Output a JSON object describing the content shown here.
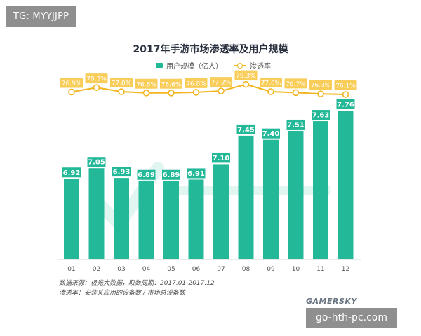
{
  "tag_label": "TG: MYYJJPP",
  "footer": {
    "source_line1": "数据来源：极光大数据，取数周期：2017.01-2017.12",
    "source_line2": "渗透率：安装某应用的设备数 / 市场总设备数",
    "brand": "GAMERSKY",
    "watermark": "go-hth-pc.com"
  },
  "colors": {
    "bar": "#23b898",
    "bar_label_bg": "#23b898",
    "line": "#f2b51f",
    "rate_box_bg": "#f9cd5a"
  },
  "chart_data": {
    "type": "bar",
    "title": "2017年手游市场渗透率及用户规模",
    "categories": [
      "01",
      "02",
      "03",
      "04",
      "05",
      "06",
      "07",
      "08",
      "09",
      "10",
      "11",
      "12"
    ],
    "series": [
      {
        "name": "用户规模（亿人）",
        "type": "bar",
        "values": [
          6.92,
          7.05,
          6.93,
          6.89,
          6.89,
          6.91,
          7.1,
          7.45,
          7.4,
          7.51,
          7.63,
          7.76
        ]
      },
      {
        "name": "渗透率",
        "type": "line",
        "values": [
          "76.9%",
          "78.3%",
          "77.0%",
          "76.6%",
          "76.6%",
          "76.8%",
          "77.2%",
          "79.3%",
          "77.0%",
          "76.7%",
          "76.3%",
          "76.1%"
        ]
      }
    ],
    "legend_position": "top-center",
    "grid": false
  }
}
